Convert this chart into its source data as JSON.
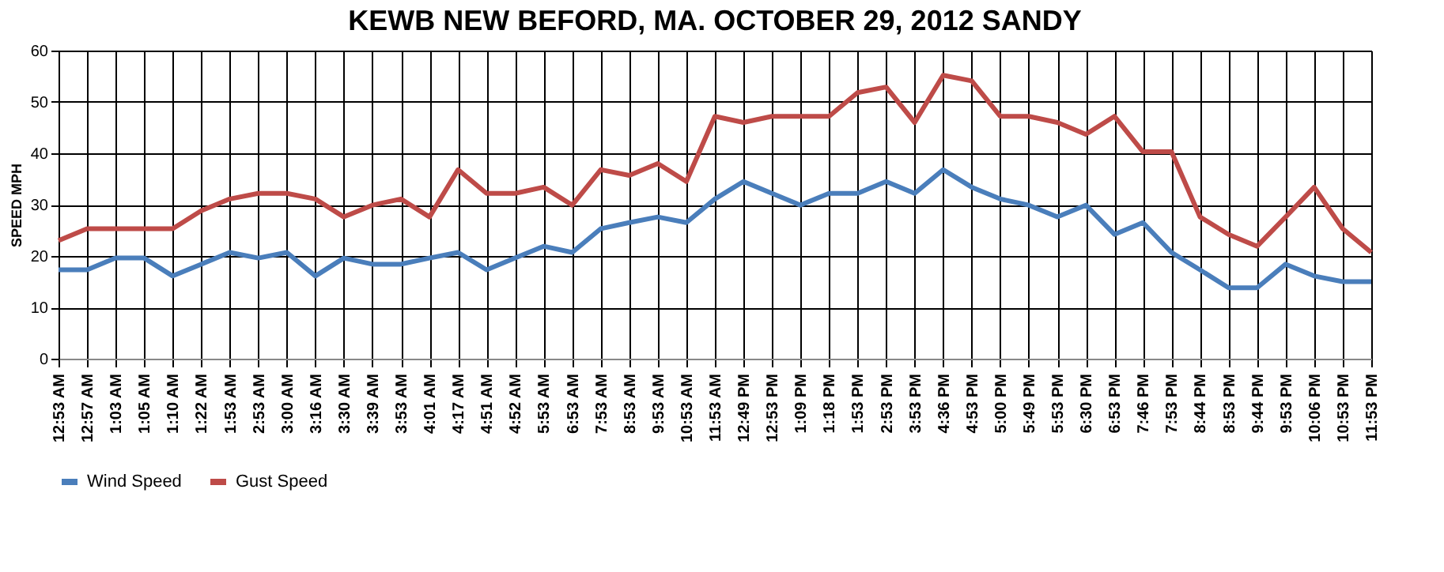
{
  "chart_data": {
    "type": "line",
    "title": "KEWB  NEW BEFORD, MA.  OCTOBER 29, 2012  SANDY",
    "ylabel": "SPEED  MPH",
    "categories": [
      "12:53 AM",
      "12:57 AM",
      "1:03 AM",
      "1:05 AM",
      "1:10 AM",
      "1:22 AM",
      "1:53 AM",
      "2:53 AM",
      "3:00 AM",
      "3:16 AM",
      "3:30 AM",
      "3:39 AM",
      "3:53 AM",
      "4:01 AM",
      "4:17 AM",
      "4:51 AM",
      "4:52 AM",
      "5:53 AM",
      "6:53 AM",
      "7:53 AM",
      "8:53 AM",
      "9:53 AM",
      "10:53 AM",
      "11:53 AM",
      "12:49 PM",
      "12:53 PM",
      "1:09 PM",
      "1:18 PM",
      "1:53 PM",
      "2:53 PM",
      "3:53 PM",
      "4:36 PM",
      "4:53 PM",
      "5:00 PM",
      "5:49 PM",
      "5:53 PM",
      "6:30 PM",
      "6:53 PM",
      "7:46 PM",
      "7:53 PM",
      "8:44 PM",
      "8:53 PM",
      "9:44 PM",
      "9:53 PM",
      "10:06 PM",
      "10:53 PM",
      "11:53 PM"
    ],
    "series": [
      {
        "name": "Wind Speed",
        "color": "#4a7ebb",
        "values": [
          17.3,
          17.3,
          19.6,
          19.6,
          16.1,
          18.4,
          20.7,
          19.6,
          20.7,
          16.1,
          19.6,
          18.4,
          18.4,
          19.6,
          20.7,
          17.3,
          19.6,
          21.9,
          20.7,
          25.3,
          26.5,
          27.6,
          26.5,
          31.1,
          34.5,
          32.2,
          29.9,
          32.2,
          32.2,
          34.5,
          32.2,
          36.8,
          33.4,
          31.1,
          29.9,
          27.6,
          29.9,
          24.2,
          26.5,
          20.7,
          17.3,
          13.8,
          13.8,
          18.4,
          16.1,
          15.0,
          15.0
        ]
      },
      {
        "name": "Gust Speed",
        "color": "#be4b48",
        "values": [
          23.0,
          25.3,
          25.3,
          25.3,
          25.3,
          28.8,
          31.1,
          32.2,
          32.2,
          31.1,
          27.6,
          29.9,
          31.1,
          27.6,
          36.8,
          32.2,
          32.2,
          33.4,
          29.9,
          36.8,
          35.7,
          38.0,
          34.5,
          47.2,
          46.0,
          47.2,
          47.2,
          47.2,
          51.8,
          52.9,
          46.0,
          55.2,
          54.1,
          47.2,
          47.2,
          46.0,
          43.7,
          47.2,
          40.3,
          40.3,
          27.6,
          24.2,
          21.9,
          27.6,
          33.4,
          25.3,
          20.7
        ]
      }
    ],
    "ylim": [
      0,
      60
    ],
    "yticks": [
      0,
      10,
      20,
      30,
      40,
      50,
      60
    ],
    "grid": true,
    "legend": "bottom",
    "line_style": "solid"
  }
}
